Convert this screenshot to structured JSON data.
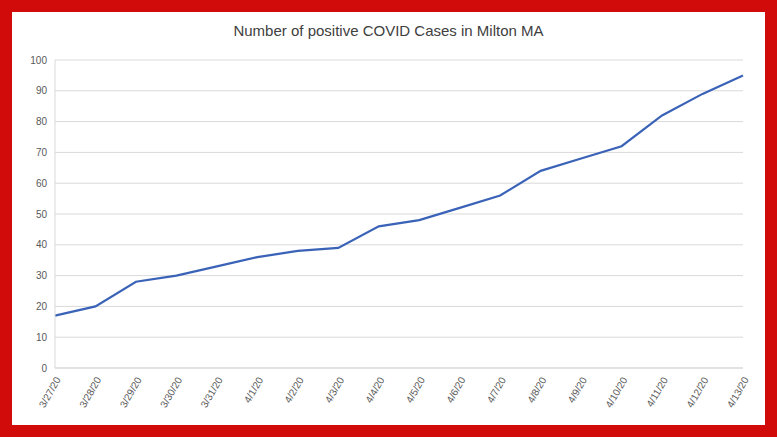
{
  "chart_data": {
    "type": "line",
    "title": "Number of positive COVID Cases in Milton MA",
    "categories": [
      "3/27/20",
      "3/28/20",
      "3/29/20",
      "3/30/20",
      "3/31/20",
      "4/1/20",
      "4/2/20",
      "4/3/20",
      "4/4/20",
      "4/5/20",
      "4/6/20",
      "4/7/20",
      "4/8/20",
      "4/9/20",
      "4/10/20",
      "4/11/20",
      "4/12/20",
      "4/13/20"
    ],
    "values": [
      17,
      20,
      28,
      30,
      33,
      36,
      38,
      39,
      46,
      48,
      52,
      56,
      64,
      68,
      72,
      82,
      89,
      95
    ],
    "color": "#3a63b8",
    "ylim": [
      0,
      100
    ],
    "yticks": [
      0,
      10,
      20,
      30,
      40,
      50,
      60,
      70,
      80,
      90,
      100
    ],
    "grid": true
  }
}
